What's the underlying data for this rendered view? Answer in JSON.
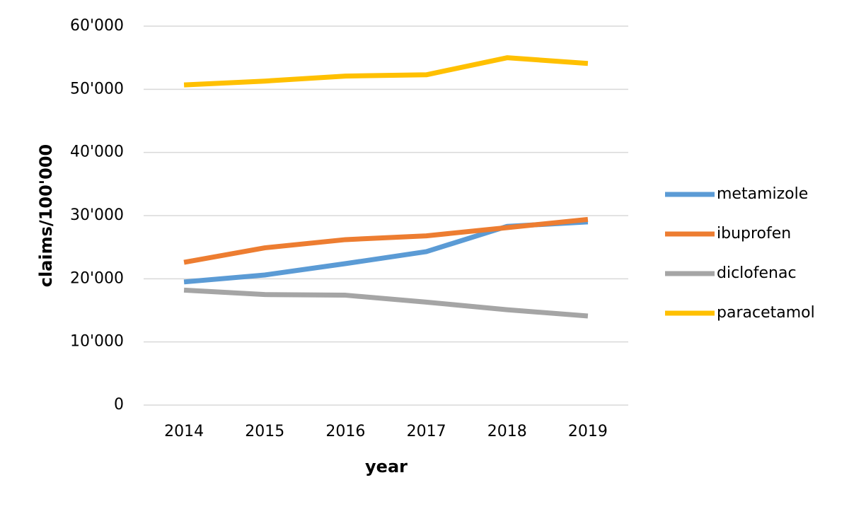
{
  "chart_data": {
    "type": "line",
    "x_label": "year",
    "y_label": "claims/100'000",
    "categories": [
      "2014",
      "2015",
      "2016",
      "2017",
      "2018",
      "2019"
    ],
    "series": [
      {
        "name": "metamizole",
        "color": "#5b9bd5",
        "values": [
          19500,
          20600,
          22400,
          24300,
          28300,
          29000
        ]
      },
      {
        "name": "ibuprofen",
        "color": "#ed7d31",
        "values": [
          22600,
          24900,
          26200,
          26800,
          28100,
          29400
        ]
      },
      {
        "name": "diclofenac",
        "color": "#a5a5a5",
        "values": [
          18200,
          17500,
          17400,
          16300,
          15100,
          14100
        ]
      },
      {
        "name": "paracetamol",
        "color": "#ffc000",
        "values": [
          50700,
          51300,
          52100,
          52300,
          55000,
          54100
        ]
      }
    ],
    "ylim": [
      0,
      60000
    ],
    "yticks": [
      0,
      {
        "value": 10000,
        "label": "10'000"
      },
      {
        "value": 20000,
        "label": "20'000"
      },
      {
        "value": 30000,
        "label": "30'000"
      },
      {
        "value": 40000,
        "label": "40'000"
      },
      {
        "value": 50000,
        "label": "50'000"
      },
      {
        "value": 60000,
        "label": "60'000"
      }
    ],
    "grid": true,
    "legend": "right"
  }
}
